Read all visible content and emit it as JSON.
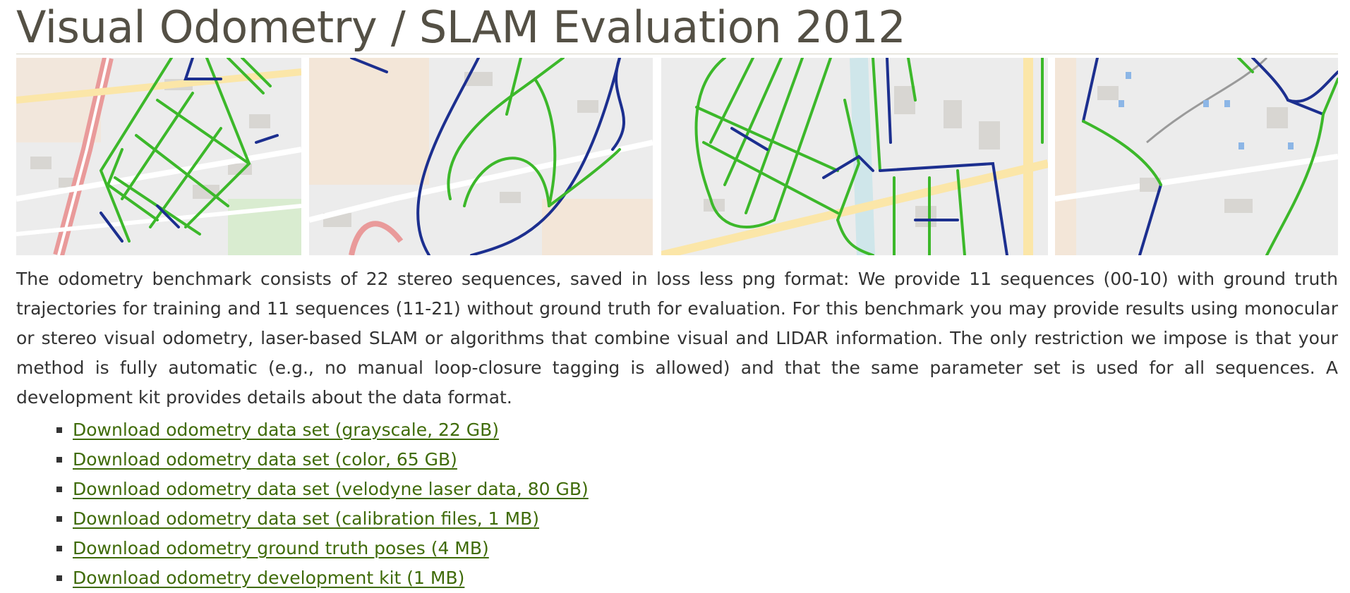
{
  "page": {
    "title": "Visual Odometry / SLAM Evaluation 2012"
  },
  "description": "The odometry benchmark consists of 22 stereo sequences, saved in loss less png format: We provide 11 sequences (00-10) with ground truth trajectories for training and 11 sequences (11-21) without ground truth for evaluation. For this benchmark you may provide results using monocular or stereo visual odometry, laser-based SLAM or algorithms that combine visual and LIDAR information. The only restriction we impose is that your method is fully automatic (e.g., no manual loop-closure tagging is allowed) and that the same parameter set is used for all sequences. A development kit provides details about the data format.",
  "downloads": [
    {
      "label": "Download odometry data set (grayscale, 22 GB)"
    },
    {
      "label": "Download odometry data set (color, 65 GB)"
    },
    {
      "label": "Download odometry data set (velodyne laser data, 80 GB)"
    },
    {
      "label": "Download odometry data set (calibration files, 1 MB)"
    },
    {
      "label": "Download odometry ground truth poses (4 MB)"
    },
    {
      "label": "Download odometry development kit (1 MB)"
    }
  ],
  "colors": {
    "title": "#545045",
    "link": "#3f6b09",
    "trajectory_green": "#3cb82a",
    "trajectory_blue": "#1c2f8f",
    "map_background": "#ececec",
    "map_road": "#ffffff"
  },
  "map_tiles": [
    {
      "name": "trajectory-map-1"
    },
    {
      "name": "trajectory-map-2"
    },
    {
      "name": "trajectory-map-3"
    },
    {
      "name": "trajectory-map-4"
    }
  ]
}
